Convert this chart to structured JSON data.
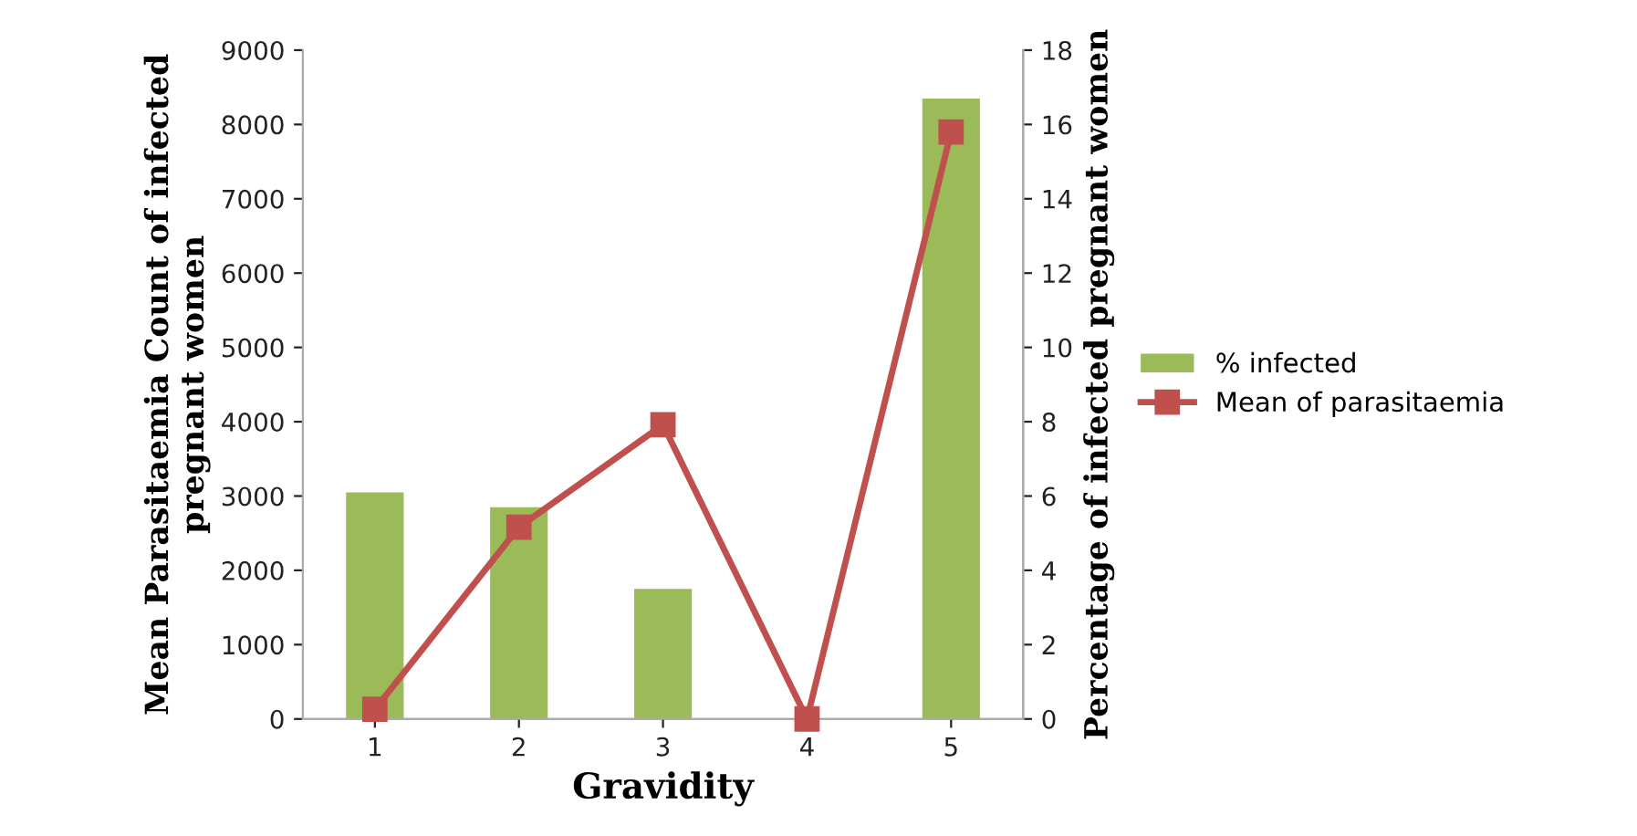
{
  "chart_data": {
    "type": "bar",
    "xlabel": "Gravidity",
    "ylabel": "Mean Parasitaemia Count of infected pregnant women",
    "y2label": "Percentage of infected pregnant women",
    "categories": [
      "1",
      "2",
      "3",
      "4",
      "5"
    ],
    "series": [
      {
        "name": "% infected",
        "axis": "y2",
        "color": "#9bbb59",
        "values": [
          6.1,
          5.7,
          3.5,
          0,
          16.7
        ]
      },
      {
        "name": "Mean of parasitaemia",
        "type": "line",
        "color": "#c0504d",
        "marker": "square",
        "values": [
          130,
          2580,
          3960,
          0,
          7900
        ]
      }
    ],
    "ylim": [
      0,
      9000
    ],
    "yticks": [
      0,
      1000,
      2000,
      3000,
      4000,
      5000,
      6000,
      7000,
      8000,
      9000
    ],
    "y2lim": [
      0,
      18
    ],
    "y2ticks": [
      0,
      2,
      4,
      6,
      8,
      10,
      12,
      14,
      16,
      18
    ],
    "legend": "right",
    "grid": false
  }
}
